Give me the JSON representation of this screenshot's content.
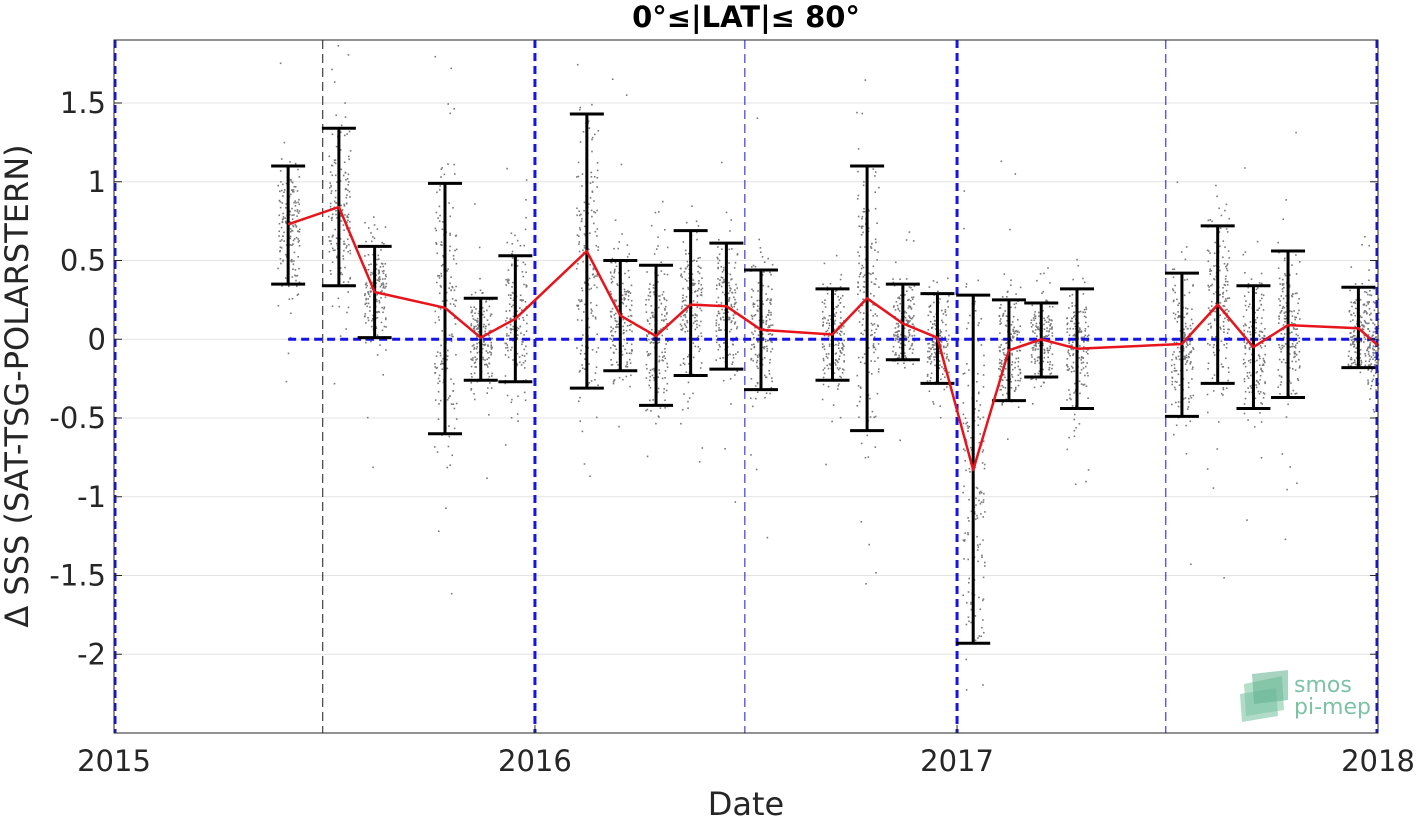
{
  "chart_data": {
    "type": "line",
    "title": "0°≤|LAT|≤ 80°",
    "xlabel": "Date",
    "ylabel": "Δ SSS (SAT-TSG-POLARSTERN)",
    "xlim": [
      "2015-01-01",
      "2018-01-01"
    ],
    "ylim": [
      -2.5,
      1.9
    ],
    "x_ticks": [
      "2015",
      "2016",
      "2017",
      "2018"
    ],
    "y_ticks": [
      1.5,
      1,
      0.5,
      0,
      -0.5,
      -1,
      -1.5,
      -2
    ],
    "y_tick_labels": [
      "1.5",
      "1",
      "0.5",
      "0",
      "-0.5",
      "-1",
      "-1.5",
      "-2"
    ],
    "grid": true,
    "colors": {
      "mean_line": "#e8141b",
      "error_bars": "#000000",
      "scatter": "#7a7a7a",
      "reference_lines": "#1414e6",
      "axis_text": "#262626"
    },
    "series": [
      {
        "type": "line-with-errorbars",
        "dates": [
          "2015-06-01",
          "2015-07-15",
          "2015-08-15",
          "2015-10-15",
          "2015-11-15",
          "2015-12-15",
          "2016-02-15",
          "2016-03-15",
          "2016-04-15",
          "2016-05-15",
          "2016-06-15",
          "2016-07-15",
          "2016-09-15",
          "2016-10-15",
          "2016-11-15",
          "2016-12-15",
          "2017-01-15",
          "2017-02-15",
          "2017-03-15",
          "2017-04-15",
          "2017-07-15",
          "2017-08-15",
          "2017-09-15",
          "2017-10-15",
          "2017-12-15",
          "2018-01-01"
        ],
        "mean": [
          0.73,
          0.84,
          0.3,
          0.2,
          0.01,
          0.13,
          0.56,
          0.15,
          0.02,
          0.22,
          0.21,
          0.06,
          0.03,
          0.26,
          0.1,
          0.01,
          -0.83,
          -0.07,
          0.0,
          -0.06,
          -0.03,
          0.22,
          -0.05,
          0.09,
          0.07,
          -0.04
        ],
        "upper": [
          1.1,
          1.34,
          0.59,
          0.99,
          0.26,
          0.53,
          1.43,
          0.5,
          0.47,
          0.69,
          0.61,
          0.44,
          0.32,
          1.1,
          0.35,
          0.29,
          0.28,
          0.25,
          0.23,
          0.32,
          0.42,
          0.72,
          0.34,
          0.56,
          0.33,
          null
        ],
        "lower": [
          0.35,
          0.34,
          0.01,
          -0.6,
          -0.26,
          -0.27,
          -0.31,
          -0.2,
          -0.42,
          -0.23,
          -0.19,
          -0.32,
          -0.26,
          -0.58,
          -0.13,
          -0.28,
          -1.93,
          -0.39,
          -0.24,
          -0.44,
          -0.49,
          -0.28,
          -0.44,
          -0.37,
          -0.18,
          null
        ]
      }
    ],
    "scatter_clusters": [
      {
        "date": "2015-06-01",
        "center": 0.73,
        "spread": 0.38
      },
      {
        "date": "2015-07-15",
        "center": 0.84,
        "spread": 0.5
      },
      {
        "date": "2015-08-15",
        "center": 0.3,
        "spread": 0.35
      },
      {
        "date": "2015-10-15",
        "center": 0.2,
        "spread": 0.8
      },
      {
        "date": "2015-11-15",
        "center": 0.01,
        "spread": 0.3
      },
      {
        "date": "2015-12-15",
        "center": 0.13,
        "spread": 0.45
      },
      {
        "date": "2016-02-15",
        "center": 0.56,
        "spread": 0.85
      },
      {
        "date": "2016-03-15",
        "center": 0.15,
        "spread": 0.4
      },
      {
        "date": "2016-04-15",
        "center": 0.02,
        "spread": 0.45
      },
      {
        "date": "2016-05-15",
        "center": 0.22,
        "spread": 0.45
      },
      {
        "date": "2016-06-15",
        "center": 0.21,
        "spread": 0.4
      },
      {
        "date": "2016-07-15",
        "center": 0.06,
        "spread": 0.38
      },
      {
        "date": "2016-09-15",
        "center": 0.03,
        "spread": 0.3
      },
      {
        "date": "2016-10-15",
        "center": 0.26,
        "spread": 0.8
      },
      {
        "date": "2016-11-15",
        "center": 0.1,
        "spread": 0.25
      },
      {
        "date": "2016-12-15",
        "center": 0.01,
        "spread": 0.3
      },
      {
        "date": "2017-01-15",
        "center": -0.83,
        "spread": 1.1
      },
      {
        "date": "2017-02-15",
        "center": -0.07,
        "spread": 0.32
      },
      {
        "date": "2017-03-15",
        "center": 0.0,
        "spread": 0.24
      },
      {
        "date": "2017-04-15",
        "center": -0.06,
        "spread": 0.38
      },
      {
        "date": "2017-07-15",
        "center": -0.03,
        "spread": 0.45
      },
      {
        "date": "2017-08-15",
        "center": 0.22,
        "spread": 0.5
      },
      {
        "date": "2017-09-15",
        "center": -0.05,
        "spread": 0.4
      },
      {
        "date": "2017-10-15",
        "center": 0.09,
        "spread": 0.46
      },
      {
        "date": "2017-12-15",
        "center": 0.07,
        "spread": 0.25
      },
      {
        "date": "2018-01-01",
        "center": -0.04,
        "spread": 0.3
      }
    ],
    "reference_lines": {
      "zero_line": {
        "y": 0,
        "from": "2015-06-01",
        "to": "2018-01-01"
      },
      "year_lines": [
        "2015-01-01",
        "2016-01-01",
        "2017-01-01",
        "2018-01-01"
      ],
      "half_year_lines": [
        "2015-07-01",
        "2016-07-01",
        "2017-07-01"
      ]
    }
  },
  "logo": {
    "line1": "smos",
    "line2": "pi-mep"
  }
}
